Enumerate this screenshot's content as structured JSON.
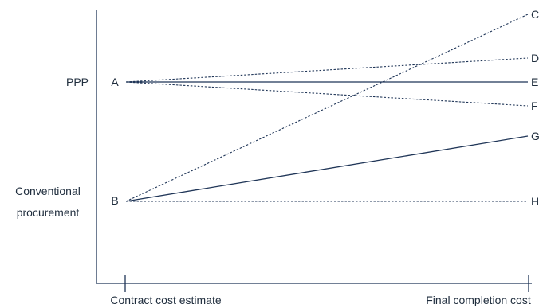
{
  "diagram": {
    "type": "line",
    "row_labels": {
      "ppp": "PPP",
      "conventional_line1": "Conventional",
      "conventional_line2": "procurement"
    },
    "x_labels": {
      "left": "Contract cost estimate",
      "right": "Final completion cost"
    },
    "start_points": {
      "A": "A",
      "B": "B"
    },
    "end_points": [
      "C",
      "D",
      "E",
      "F",
      "G",
      "H"
    ],
    "lines": [
      {
        "from": "A",
        "to": "D",
        "style": "dashed"
      },
      {
        "from": "A",
        "to": "E",
        "style": "solid"
      },
      {
        "from": "A",
        "to": "F",
        "style": "dashed"
      },
      {
        "from": "B",
        "to": "C",
        "style": "dashed"
      },
      {
        "from": "B",
        "to": "G",
        "style": "solid"
      },
      {
        "from": "B",
        "to": "H",
        "style": "dashed"
      }
    ],
    "colors": {
      "line": "#1f3557",
      "text": "#1f2d3d"
    }
  }
}
